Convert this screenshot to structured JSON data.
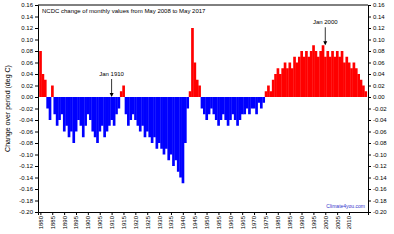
{
  "chart_data": {
    "type": "bar",
    "title": "NCDC change of monthly values from May 2008 to May 2017",
    "y_label": "Change over period (deg C)",
    "credit": "Climate4you.com",
    "annotations": [
      {
        "text": "Jan 1910",
        "x": 1910,
        "y": 0.0
      },
      {
        "text": "Jan 2000",
        "x": 2000,
        "y": 0.09
      }
    ],
    "x": [
      1880,
      1881,
      1882,
      1883,
      1884,
      1885,
      1886,
      1887,
      1888,
      1889,
      1890,
      1891,
      1892,
      1893,
      1894,
      1895,
      1896,
      1897,
      1898,
      1899,
      1900,
      1901,
      1902,
      1903,
      1904,
      1905,
      1906,
      1907,
      1908,
      1909,
      1910,
      1911,
      1912,
      1913,
      1914,
      1915,
      1916,
      1917,
      1918,
      1919,
      1920,
      1921,
      1922,
      1923,
      1924,
      1925,
      1926,
      1927,
      1928,
      1929,
      1930,
      1931,
      1932,
      1933,
      1934,
      1935,
      1936,
      1937,
      1938,
      1939,
      1940,
      1941,
      1942,
      1943,
      1944,
      1945,
      1946,
      1947,
      1948,
      1949,
      1950,
      1951,
      1952,
      1953,
      1954,
      1955,
      1956,
      1957,
      1958,
      1959,
      1960,
      1961,
      1962,
      1963,
      1964,
      1965,
      1966,
      1967,
      1968,
      1969,
      1970,
      1971,
      1972,
      1973,
      1974,
      1975,
      1976,
      1977,
      1978,
      1979,
      1980,
      1981,
      1982,
      1983,
      1984,
      1985,
      1986,
      1987,
      1988,
      1989,
      1990,
      1991,
      1992,
      1993,
      1994,
      1995,
      1996,
      1997,
      1998,
      1999,
      2000,
      2001,
      2002,
      2003,
      2004,
      2005,
      2006,
      2007,
      2008,
      2009,
      2010,
      2011,
      2012,
      2013,
      2014,
      2015,
      2016,
      2017
    ],
    "values": [
      0.08,
      0.04,
      0.03,
      -0.02,
      -0.04,
      0.02,
      -0.03,
      -0.05,
      -0.04,
      -0.03,
      -0.06,
      -0.05,
      -0.07,
      -0.06,
      -0.08,
      -0.06,
      -0.04,
      -0.05,
      -0.07,
      -0.05,
      -0.03,
      -0.04,
      -0.06,
      -0.07,
      -0.08,
      -0.06,
      -0.05,
      -0.07,
      -0.06,
      -0.05,
      -0.04,
      -0.05,
      -0.03,
      -0.02,
      0.01,
      0.02,
      -0.03,
      -0.05,
      -0.04,
      -0.03,
      -0.04,
      -0.05,
      -0.06,
      -0.05,
      -0.07,
      -0.06,
      -0.07,
      -0.08,
      -0.07,
      -0.09,
      -0.08,
      -0.09,
      -0.1,
      -0.09,
      -0.11,
      -0.1,
      -0.12,
      -0.11,
      -0.13,
      -0.14,
      -0.15,
      -0.08,
      -0.02,
      0.01,
      0.12,
      0.06,
      0.03,
      0.02,
      -0.02,
      -0.03,
      -0.04,
      -0.03,
      -0.02,
      -0.03,
      -0.04,
      -0.05,
      -0.04,
      -0.03,
      -0.04,
      -0.05,
      -0.04,
      -0.03,
      -0.04,
      -0.05,
      -0.04,
      -0.03,
      -0.03,
      -0.02,
      -0.03,
      -0.02,
      -0.02,
      -0.03,
      -0.01,
      -0.02,
      -0.01,
      0.01,
      0.02,
      0.01,
      0.03,
      0.04,
      0.05,
      0.04,
      0.05,
      0.06,
      0.05,
      0.06,
      0.05,
      0.07,
      0.06,
      0.07,
      0.08,
      0.07,
      0.08,
      0.07,
      0.08,
      0.09,
      0.08,
      0.07,
      0.08,
      0.09,
      0.07,
      0.08,
      0.07,
      0.08,
      0.07,
      0.08,
      0.07,
      0.08,
      0.06,
      0.07,
      0.06,
      0.05,
      0.06,
      0.05,
      0.04,
      0.03,
      0.02,
      0.01
    ],
    "xlim": [
      1879,
      2018
    ],
    "xticks": [
      1880,
      1885,
      1890,
      1895,
      1900,
      1905,
      1910,
      1915,
      1920,
      1925,
      1930,
      1935,
      1940,
      1945,
      1950,
      1955,
      1960,
      1965,
      1970,
      1975,
      1980,
      1985,
      1990,
      1995,
      2000,
      2005,
      2010
    ],
    "ylim": [
      -0.2,
      0.16
    ],
    "yticks": [
      {
        "value": -0.2,
        "label": "-0.20"
      },
      {
        "value": -0.18,
        "label": "-0.18"
      },
      {
        "value": -0.16,
        "label": "-0.16"
      },
      {
        "value": -0.14,
        "label": "-0.14"
      },
      {
        "value": -0.12,
        "label": "-0.12"
      },
      {
        "value": -0.1,
        "label": "-0.10"
      },
      {
        "value": -0.08,
        "label": "-0.08"
      },
      {
        "value": -0.06,
        "label": "-0.06"
      },
      {
        "value": -0.04,
        "label": "-0.04"
      },
      {
        "value": -0.02,
        "label": "-0.02"
      },
      {
        "value": 0,
        "label": "0.00"
      },
      {
        "value": 0.02,
        "label": "0.02"
      },
      {
        "value": 0.04,
        "label": "0.04"
      },
      {
        "value": 0.06,
        "label": "0.06"
      },
      {
        "value": 0.08,
        "label": "0.08"
      },
      {
        "value": 0.1,
        "label": "0.10"
      },
      {
        "value": 0.12,
        "label": "0.12"
      },
      {
        "value": 0.14,
        "label": "0.14"
      },
      {
        "value": 0.16,
        "label": "0.16"
      }
    ],
    "grid": false
  }
}
